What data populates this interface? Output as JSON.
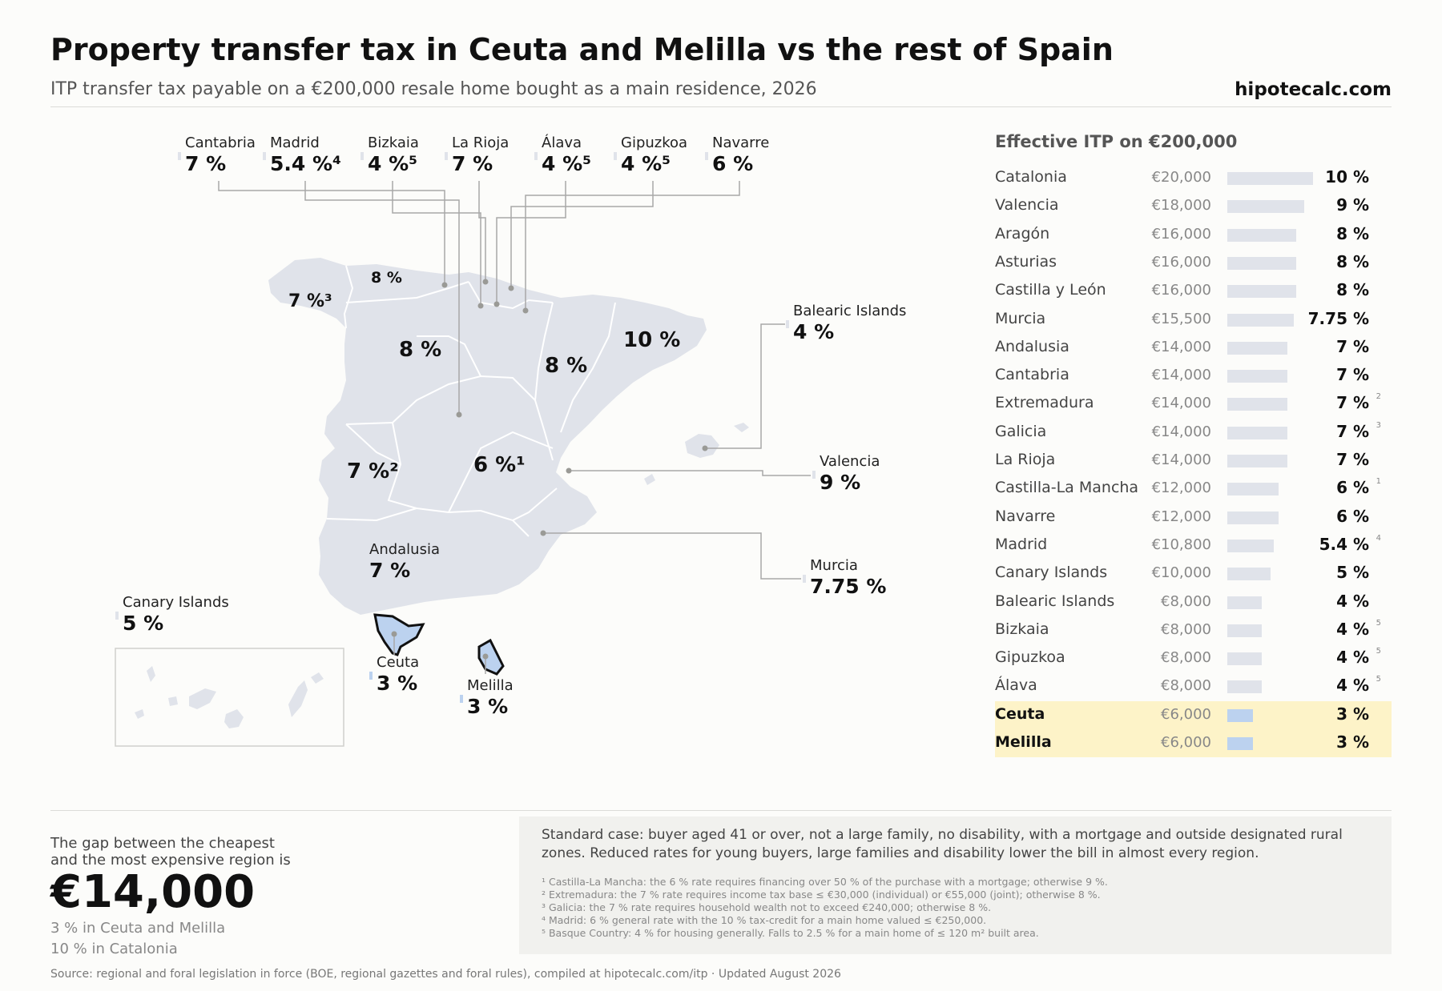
{
  "header": {
    "title": "Property transfer tax in Ceuta and Melilla vs the rest of Spain",
    "subtitle": "ITP transfer tax payable on a €200,000 resale home bought as a main residence, 2026",
    "brand": "hipotecalc.com"
  },
  "callouts": {
    "cantabria": {
      "name": "Cantabria",
      "value": "7 %"
    },
    "madrid": {
      "name": "Madrid",
      "value": "5.4 %⁴"
    },
    "bizkaia": {
      "name": "Bizkaia",
      "value": "4 %⁵"
    },
    "la_rioja": {
      "name": "La Rioja",
      "value": "7 %"
    },
    "alava": {
      "name": "Álava",
      "value": "4 %⁵"
    },
    "gipuzkoa": {
      "name": "Gipuzkoa",
      "value": "4 %⁵"
    },
    "navarre": {
      "name": "Navarre",
      "value": "6 %"
    },
    "balearic": {
      "name": "Balearic Islands",
      "value": "4 %"
    },
    "valencia": {
      "name": "Valencia",
      "value": "9 %"
    },
    "murcia": {
      "name": "Murcia",
      "value": "7.75 %"
    },
    "andalusia": {
      "name": "Andalusia",
      "value": "7 %"
    },
    "canary": {
      "name": "Canary Islands",
      "value": "5 %"
    },
    "ceuta": {
      "name": "Ceuta",
      "value": "3 %"
    },
    "melilla": {
      "name": "Melilla",
      "value": "3 %"
    }
  },
  "map_labels": {
    "galicia": "7 %³",
    "asturias": "8 %",
    "castilla_leon": "8 %",
    "aragon": "8 %",
    "catalonia": "10 %",
    "extremadura": "7 %²",
    "castilla_la_mancha": "6 %¹"
  },
  "table": {
    "title": "Effective ITP on €200,000",
    "rows": [
      {
        "region": "Catalonia",
        "amount": "€20,000",
        "rate": "10 %",
        "note": "",
        "rate_value": 10,
        "highlight": false
      },
      {
        "region": "Valencia",
        "amount": "€18,000",
        "rate": "9 %",
        "note": "",
        "rate_value": 9,
        "highlight": false
      },
      {
        "region": "Aragón",
        "amount": "€16,000",
        "rate": "8 %",
        "note": "",
        "rate_value": 8,
        "highlight": false
      },
      {
        "region": "Asturias",
        "amount": "€16,000",
        "rate": "8 %",
        "note": "",
        "rate_value": 8,
        "highlight": false
      },
      {
        "region": "Castilla y León",
        "amount": "€16,000",
        "rate": "8 %",
        "note": "",
        "rate_value": 8,
        "highlight": false
      },
      {
        "region": "Murcia",
        "amount": "€15,500",
        "rate": "7.75 %",
        "note": "",
        "rate_value": 7.75,
        "highlight": false
      },
      {
        "region": "Andalusia",
        "amount": "€14,000",
        "rate": "7 %",
        "note": "",
        "rate_value": 7,
        "highlight": false
      },
      {
        "region": "Cantabria",
        "amount": "€14,000",
        "rate": "7 %",
        "note": "",
        "rate_value": 7,
        "highlight": false
      },
      {
        "region": "Extremadura",
        "amount": "€14,000",
        "rate": "7 %",
        "note": "2",
        "rate_value": 7,
        "highlight": false
      },
      {
        "region": "Galicia",
        "amount": "€14,000",
        "rate": "7 %",
        "note": "3",
        "rate_value": 7,
        "highlight": false
      },
      {
        "region": "La Rioja",
        "amount": "€14,000",
        "rate": "7 %",
        "note": "",
        "rate_value": 7,
        "highlight": false
      },
      {
        "region": "Castilla-La Mancha",
        "amount": "€12,000",
        "rate": "6 %",
        "note": "1",
        "rate_value": 6,
        "highlight": false
      },
      {
        "region": "Navarre",
        "amount": "€12,000",
        "rate": "6 %",
        "note": "",
        "rate_value": 6,
        "highlight": false
      },
      {
        "region": "Madrid",
        "amount": "€10,800",
        "rate": "5.4 %",
        "note": "4",
        "rate_value": 5.4,
        "highlight": false
      },
      {
        "region": "Canary Islands",
        "amount": "€10,000",
        "rate": "5 %",
        "note": "",
        "rate_value": 5,
        "highlight": false
      },
      {
        "region": "Balearic Islands",
        "amount": "€8,000",
        "rate": "4 %",
        "note": "",
        "rate_value": 4,
        "highlight": false
      },
      {
        "region": "Bizkaia",
        "amount": "€8,000",
        "rate": "4 %",
        "note": "5",
        "rate_value": 4,
        "highlight": false
      },
      {
        "region": "Gipuzkoa",
        "amount": "€8,000",
        "rate": "4 %",
        "note": "5",
        "rate_value": 4,
        "highlight": false
      },
      {
        "region": "Álava",
        "amount": "€8,000",
        "rate": "4 %",
        "note": "5",
        "rate_value": 4,
        "highlight": false
      },
      {
        "region": "Ceuta",
        "amount": "€6,000",
        "rate": "3 %",
        "note": "",
        "rate_value": 3,
        "highlight": true
      },
      {
        "region": "Melilla",
        "amount": "€6,000",
        "rate": "3 %",
        "note": "",
        "rate_value": 3,
        "highlight": true
      }
    ]
  },
  "summary": {
    "gap_line1": "The gap between the cheapest",
    "gap_line2": "and the most expensive region is",
    "gap_value": "€14,000",
    "low_note": "3 % in Ceuta and Melilla",
    "high_note": "10 % in Catalonia"
  },
  "notes": {
    "standard_case": "Standard case: buyer aged 41 or over, not a large family, no disability, with a mortgage and outside designated rural zones. Reduced rates for young buyers, large families and disability lower the bill in almost every region.",
    "footnotes": [
      "¹ Castilla-La Mancha: the 6 % rate requires financing over 50 % of the purchase with a mortgage; otherwise 9 %.",
      "² Extremadura: the 7 % rate requires income tax base ≤ €30,000 (individual) or €55,000 (joint); otherwise 8 %.",
      "³ Galicia: the 7 % rate requires household wealth not to exceed €240,000; otherwise 8 %.",
      "⁴ Madrid: 6 % general rate with the 10 % tax-credit for a main home valued ≤ €250,000.",
      "⁵ Basque Country: 4 % for housing generally. Falls to 2.5 % for a main home of ≤ 120 m² built area."
    ]
  },
  "source": "Source: regional and foral legislation in force (BOE, regional gazettes and foral rules), compiled at hipotecalc.com/itp · Updated August 2026",
  "colors": {
    "land": "#e0e3ea",
    "highlight_fill": "#bcd2ef",
    "highlight_row": "#fdf3c8",
    "leader": "#a8a8a8"
  }
}
